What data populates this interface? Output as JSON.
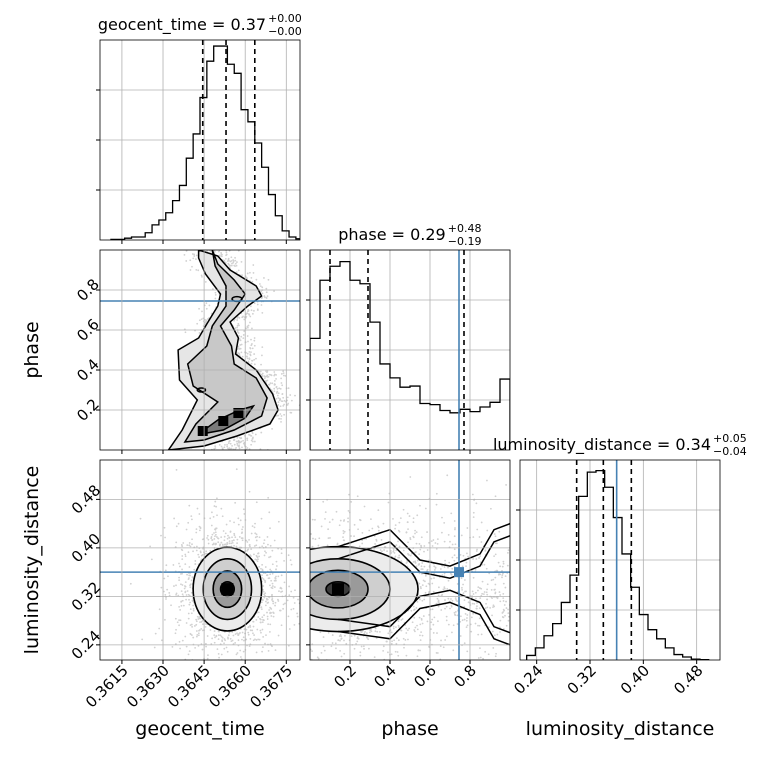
{
  "chart_data": [
    {
      "type": "histogram",
      "panel": "geocent_time",
      "title_prefix": "geocent_time = 0.37",
      "title_sup": "+0.00",
      "title_sub": "−0.00",
      "xlim": [
        0.3607,
        0.368
      ],
      "quantile_lines": [
        0.36445,
        0.3653,
        0.36635
      ],
      "bin_edges": [
        0.3611,
        0.36135,
        0.3616,
        0.36185,
        0.3621,
        0.36235,
        0.3626,
        0.36285,
        0.3631,
        0.36335,
        0.3636,
        0.36385,
        0.3641,
        0.36435,
        0.3646,
        0.36485,
        0.3651,
        0.36535,
        0.3656,
        0.36585,
        0.3661,
        0.36635,
        0.3666,
        0.36685,
        0.3671,
        0.36735,
        0.3676,
        0.36785,
        0.3681
      ],
      "counts": [
        1,
        1,
        3,
        5,
        5,
        12,
        25,
        33,
        45,
        65,
        90,
        135,
        175,
        235,
        295,
        320,
        320,
        290,
        275,
        215,
        195,
        160,
        120,
        75,
        40,
        15,
        5,
        2
      ],
      "y_max": 330
    },
    {
      "type": "histogram",
      "panel": "phase",
      "title_prefix": "phase = 0.29",
      "title_sup": "+0.48",
      "title_sub": "−0.19",
      "xlim": [
        0.0,
        1.0
      ],
      "quantile_lines": [
        0.1,
        0.29,
        0.77
      ],
      "truth": 0.745,
      "bin_edges": [
        0.0,
        0.05,
        0.1,
        0.15,
        0.2,
        0.25,
        0.3,
        0.35,
        0.4,
        0.45,
        0.5,
        0.55,
        0.6,
        0.65,
        0.7,
        0.75,
        0.8,
        0.85,
        0.9,
        0.95,
        1.0
      ],
      "counts": [
        480,
        730,
        790,
        810,
        730,
        715,
        550,
        370,
        310,
        270,
        275,
        200,
        195,
        170,
        160,
        175,
        165,
        185,
        205,
        305
      ],
      "y_max": 860
    },
    {
      "type": "histogram",
      "panel": "luminosity_distance",
      "title_prefix": "luminosity_distance = 0.34",
      "title_sup": "+0.05",
      "title_sub": "−0.04",
      "xlim": [
        0.215,
        0.515
      ],
      "quantile_lines": [
        0.3,
        0.34,
        0.382
      ],
      "truth": 0.36,
      "bin_edges": [
        0.225,
        0.238,
        0.251,
        0.264,
        0.277,
        0.29,
        0.303,
        0.316,
        0.329,
        0.342,
        0.355,
        0.368,
        0.381,
        0.394,
        0.407,
        0.42,
        0.433,
        0.446,
        0.459,
        0.472,
        0.485,
        0.498
      ],
      "counts": [
        15,
        40,
        80,
        120,
        190,
        280,
        540,
        620,
        625,
        570,
        470,
        350,
        240,
        150,
        100,
        70,
        40,
        18,
        10,
        3,
        1
      ],
      "y_max": 660
    },
    {
      "type": "contour",
      "panel": "phase_vs_geocent_time",
      "x": "geocent_time",
      "y": "phase",
      "xlim": [
        0.3607,
        0.368
      ],
      "ylim": [
        0.0,
        1.0
      ],
      "truth_y": 0.745,
      "levels": [
        0.39,
        0.86,
        0.99
      ],
      "outer_path": [
        [
          0.3643,
          1.0
        ],
        [
          0.365,
          0.97
        ],
        [
          0.36545,
          0.9
        ],
        [
          0.3664,
          0.82
        ],
        [
          0.3666,
          0.77
        ],
        [
          0.3661,
          0.72
        ],
        [
          0.36545,
          0.64
        ],
        [
          0.36575,
          0.56
        ],
        [
          0.36565,
          0.48
        ],
        [
          0.3664,
          0.4
        ],
        [
          0.367,
          0.28
        ],
        [
          0.3672,
          0.2
        ],
        [
          0.3669,
          0.13
        ],
        [
          0.3657,
          0.07
        ],
        [
          0.3645,
          0.02
        ],
        [
          0.3632,
          0.0
        ],
        [
          0.3637,
          0.1
        ],
        [
          0.36425,
          0.25
        ],
        [
          0.3636,
          0.35
        ],
        [
          0.36355,
          0.5
        ],
        [
          0.3643,
          0.56
        ],
        [
          0.3646,
          0.63
        ],
        [
          0.365,
          0.72
        ],
        [
          0.3651,
          0.78
        ],
        [
          0.36455,
          0.88
        ],
        [
          0.3643,
          0.96
        ]
      ],
      "mid_path": [
        [
          0.3648,
          1.0
        ],
        [
          0.365,
          0.93
        ],
        [
          0.3656,
          0.85
        ],
        [
          0.366,
          0.78
        ],
        [
          0.3656,
          0.7
        ],
        [
          0.3651,
          0.62
        ],
        [
          0.3655,
          0.52
        ],
        [
          0.3656,
          0.43
        ],
        [
          0.3664,
          0.36
        ],
        [
          0.3668,
          0.26
        ],
        [
          0.3666,
          0.17
        ],
        [
          0.3656,
          0.1
        ],
        [
          0.3645,
          0.05
        ],
        [
          0.3638,
          0.04
        ],
        [
          0.3642,
          0.13
        ],
        [
          0.365,
          0.24
        ],
        [
          0.3641,
          0.32
        ],
        [
          0.3639,
          0.43
        ],
        [
          0.3646,
          0.52
        ],
        [
          0.3648,
          0.62
        ],
        [
          0.3653,
          0.72
        ],
        [
          0.3653,
          0.82
        ],
        [
          0.3649,
          0.92
        ]
      ],
      "inner_path": [
        [
          0.3644,
          0.08
        ],
        [
          0.3652,
          0.1
        ],
        [
          0.366,
          0.16
        ],
        [
          0.3663,
          0.22
        ],
        [
          0.3658,
          0.2
        ],
        [
          0.365,
          0.15
        ],
        [
          0.3646,
          0.11
        ]
      ],
      "inner_blobs": [
        {
          "cx": 0.3657,
          "cy": 0.755,
          "rx": 0.00018,
          "ry": 0.012
        },
        {
          "cx": 0.3644,
          "cy": 0.3,
          "rx": 0.00015,
          "ry": 0.01
        }
      ]
    },
    {
      "type": "contour",
      "panel": "luminosity_distance_vs_geocent_time",
      "x": "geocent_time",
      "y": "luminosity_distance",
      "xlim": [
        0.3607,
        0.368
      ],
      "ylim": [
        0.215,
        0.545
      ],
      "truth_y": 0.36,
      "center": [
        0.36535,
        0.332
      ],
      "ellipses": [
        {
          "rx": 0.00125,
          "ry": 0.069
        },
        {
          "rx": 0.00088,
          "ry": 0.05
        },
        {
          "rx": 0.00052,
          "ry": 0.03
        },
        {
          "rx": 0.00025,
          "ry": 0.012
        }
      ]
    },
    {
      "type": "contour",
      "panel": "luminosity_distance_vs_phase",
      "x": "phase",
      "y": "luminosity_distance",
      "xlim": [
        0.0,
        1.0
      ],
      "ylim": [
        0.215,
        0.545
      ],
      "truth": [
        0.745,
        0.36
      ],
      "center": [
        0.14,
        0.332
      ],
      "ellipses": [
        {
          "rx": 0.4,
          "ry": 0.07
        },
        {
          "rx": 0.26,
          "ry": 0.05
        },
        {
          "rx": 0.15,
          "ry": 0.031
        },
        {
          "rx": 0.06,
          "ry": 0.012
        }
      ],
      "tail_upper": [
        0.4,
        0.43,
        0.55,
        0.38,
        0.7,
        0.37,
        0.85,
        0.39,
        0.92,
        0.43,
        1.0,
        0.44
      ],
      "tail_lower": [
        0.4,
        0.25,
        0.55,
        0.3,
        0.7,
        0.31,
        0.85,
        0.29,
        0.92,
        0.25,
        1.0,
        0.24
      ]
    }
  ],
  "axes": {
    "geocent_time": {
      "label": "geocent_time",
      "ticks": [
        {
          "v": 0.3615,
          "label": "0.3615"
        },
        {
          "v": 0.363,
          "label": "0.3630"
        },
        {
          "v": 0.3645,
          "label": "0.3645"
        },
        {
          "v": 0.366,
          "label": "0.3660"
        },
        {
          "v": 0.3675,
          "label": "0.3675"
        }
      ]
    },
    "phase": {
      "label": "phase",
      "ticks": [
        {
          "v": 0.2,
          "label": "0.2"
        },
        {
          "v": 0.4,
          "label": "0.4"
        },
        {
          "v": 0.6,
          "label": "0.6"
        },
        {
          "v": 0.8,
          "label": "0.8"
        }
      ]
    },
    "luminosity_distance": {
      "label": "luminosity_distance",
      "ticks": [
        {
          "v": 0.24,
          "label": "0.24"
        },
        {
          "v": 0.32,
          "label": "0.32"
        },
        {
          "v": 0.4,
          "label": "0.40"
        },
        {
          "v": 0.48,
          "label": "0.48"
        }
      ]
    }
  },
  "colors": {
    "truth": "#4682b4",
    "contour": "#000000",
    "scatter": "#9a9a9a",
    "grid": "#b0b0b0",
    "density_dark": "#000000"
  }
}
